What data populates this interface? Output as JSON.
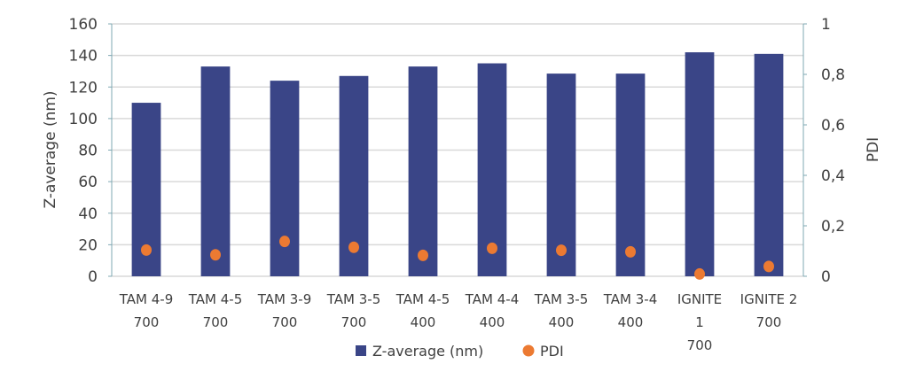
{
  "chart_data": {
    "type": "bar+scatter",
    "categories": [
      [
        "TAM 4-9",
        "700"
      ],
      [
        "TAM 4-5",
        "700"
      ],
      [
        "TAM 3-9",
        "700"
      ],
      [
        "TAM 3-5",
        "700"
      ],
      [
        "TAM 4-5",
        "400"
      ],
      [
        "TAM 4-4",
        "400"
      ],
      [
        "TAM 3-5",
        "400"
      ],
      [
        "TAM 3-4",
        "400"
      ],
      [
        "IGNITE",
        "1",
        "700"
      ],
      [
        "IGNITE 2",
        "700"
      ]
    ],
    "series": [
      {
        "name": "Z-average (nm)",
        "kind": "bar",
        "axis": "left",
        "color": "#3a4587",
        "values": [
          110,
          133,
          124,
          127,
          133,
          135,
          128.5,
          128.5,
          142,
          141
        ]
      },
      {
        "name": "PDI",
        "kind": "scatter",
        "axis": "right",
        "color": "#ec7a32",
        "values": [
          0.104,
          0.085,
          0.138,
          0.115,
          0.083,
          0.111,
          0.103,
          0.097,
          0.009,
          0.039
        ]
      }
    ],
    "ylabel": "Z-average (nm)",
    "y2label": "PDI",
    "ylim": [
      0,
      160
    ],
    "y2lim": [
      0,
      1
    ],
    "yticks": [
      "0",
      "20",
      "40",
      "60",
      "80",
      "100",
      "120",
      "140",
      "160"
    ],
    "y2ticks": [
      "0",
      "0,2",
      "0,4",
      "0,6",
      "0,8",
      "1"
    ],
    "grid": true,
    "legend": "bottom"
  }
}
